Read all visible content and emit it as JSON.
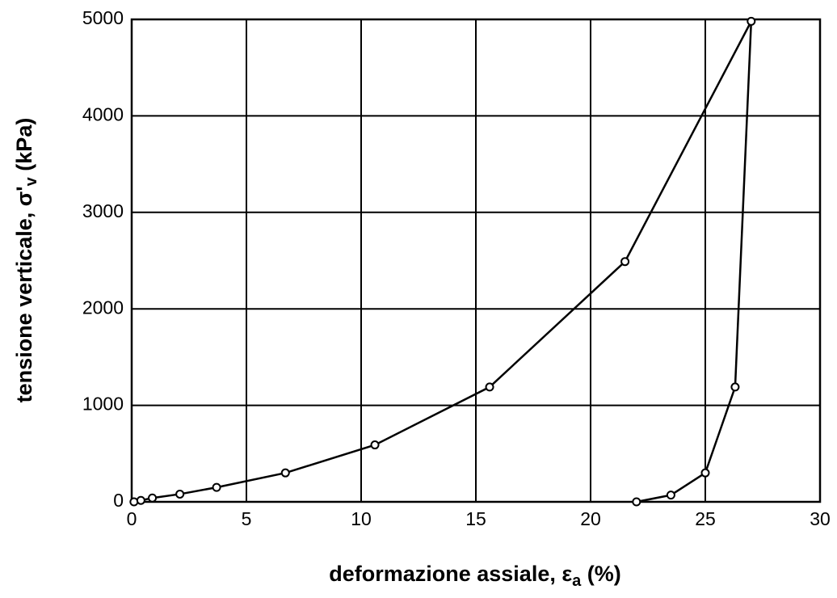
{
  "chart_data": {
    "type": "line",
    "xlabel": [
      "deformazione assiale, ε",
      "a",
      " (%)"
    ],
    "ylabel": [
      "tensione verticale, σ'",
      "v",
      " (kPa)"
    ],
    "x": [
      0.1,
      0.4,
      0.9,
      2.1,
      3.7,
      6.7,
      10.6,
      15.6,
      21.5,
      27.0,
      26.3,
      25.0,
      23.5,
      22.0
    ],
    "series": [
      {
        "color": "#000000",
        "values": [
          0,
          15,
          40,
          80,
          150,
          300,
          590,
          1190,
          2490,
          4980,
          1190,
          300,
          70,
          0
        ]
      }
    ],
    "xlim": [
      0,
      30
    ],
    "xticks": [
      0,
      5,
      10,
      15,
      20,
      25,
      30
    ],
    "ylim": [
      0,
      5000
    ],
    "yticks": [
      0,
      1000,
      2000,
      3000,
      4000,
      5000
    ],
    "grid": true,
    "markers": true
  }
}
